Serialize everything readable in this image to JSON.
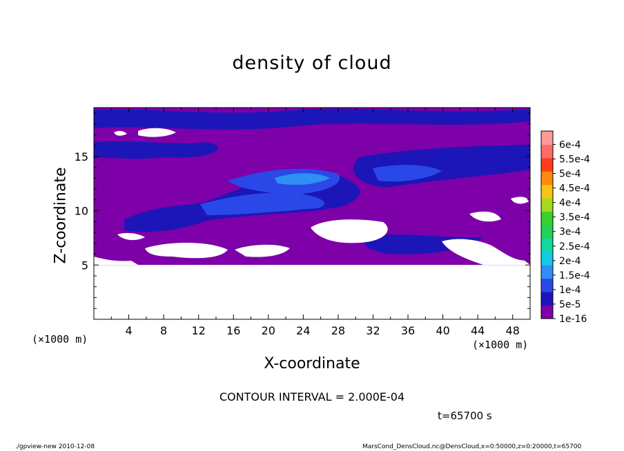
{
  "chart_data": {
    "type": "heatmap",
    "title": "density of cloud",
    "xlabel": "X-coordinate",
    "ylabel": "Z-coordinate",
    "x_unit_left": "(×1000 m)",
    "x_unit_right": "(×1000 m)",
    "xlim": [
      0,
      50
    ],
    "ylim": [
      0,
      19.5
    ],
    "x_ticks": [
      4,
      8,
      12,
      16,
      20,
      24,
      28,
      32,
      36,
      40,
      44,
      48
    ],
    "y_ticks": [
      5,
      10,
      15
    ],
    "colorbar": {
      "levels": [
        "1e-16",
        "5e-5",
        "1e-4",
        "1.5e-4",
        "2e-4",
        "2.5e-4",
        "3e-4",
        "3.5e-4",
        "4e-4",
        "4.5e-4",
        "5e-4",
        "5.5e-4",
        "6e-4"
      ],
      "colors": [
        "#7d00a8",
        "#1c16b8",
        "#2a48e8",
        "#2f8ff2",
        "#14c8e6",
        "#10d8a0",
        "#22d05a",
        "#39d12a",
        "#a6d81e",
        "#f5c514",
        "#ff8a10",
        "#ff3d1a",
        "#ff6a6a",
        "#ff9a9a"
      ]
    },
    "cloud_base_z": 5,
    "cloud_top_z": 19.5,
    "contour_interval": "CONTOUR INTERVAL = 2.000E-04",
    "time": "t=65700 s"
  },
  "footer": {
    "left": "./gpview-new   2010-12-08",
    "right": "MarsCond_DensCloud.nc@DensCloud,x=0:50000,z=0:20000,t=65700"
  }
}
